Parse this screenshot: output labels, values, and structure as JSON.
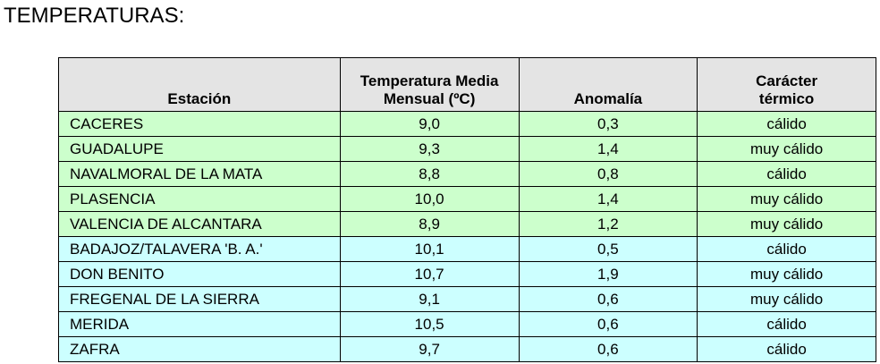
{
  "title": "TEMPERATURAS:",
  "table": {
    "header": [
      [
        "Estación"
      ],
      [
        "Temperatura Media",
        "Mensual (ºC)"
      ],
      [
        "Anomalía"
      ],
      [
        "Carácter",
        "térmico"
      ]
    ],
    "rows": [
      [
        "CACERES",
        "9,0",
        "0,3",
        "cálido"
      ],
      [
        "GUADALUPE",
        "9,3",
        "1,4",
        "muy cálido"
      ],
      [
        "NAVALMORAL DE LA MATA",
        "8,8",
        "0,8",
        "cálido"
      ],
      [
        "PLASENCIA",
        "10,0",
        "1,4",
        "muy cálido"
      ],
      [
        "VALENCIA DE ALCANTARA",
        "8,9",
        "1,2",
        "muy cálido"
      ],
      [
        "BADAJOZ/TALAVERA 'B. A.'",
        "10,1",
        "0,5",
        "cálido"
      ],
      [
        "DON BENITO",
        "10,7",
        "1,9",
        "muy cálido"
      ],
      [
        "FREGENAL DE LA SIERRA",
        "9,1",
        "0,6",
        "muy cálido"
      ],
      [
        "MERIDA",
        "10,5",
        "0,6",
        "cálido"
      ],
      [
        "ZAFRA",
        "9,7",
        "0,6",
        "cálido"
      ]
    ]
  }
}
